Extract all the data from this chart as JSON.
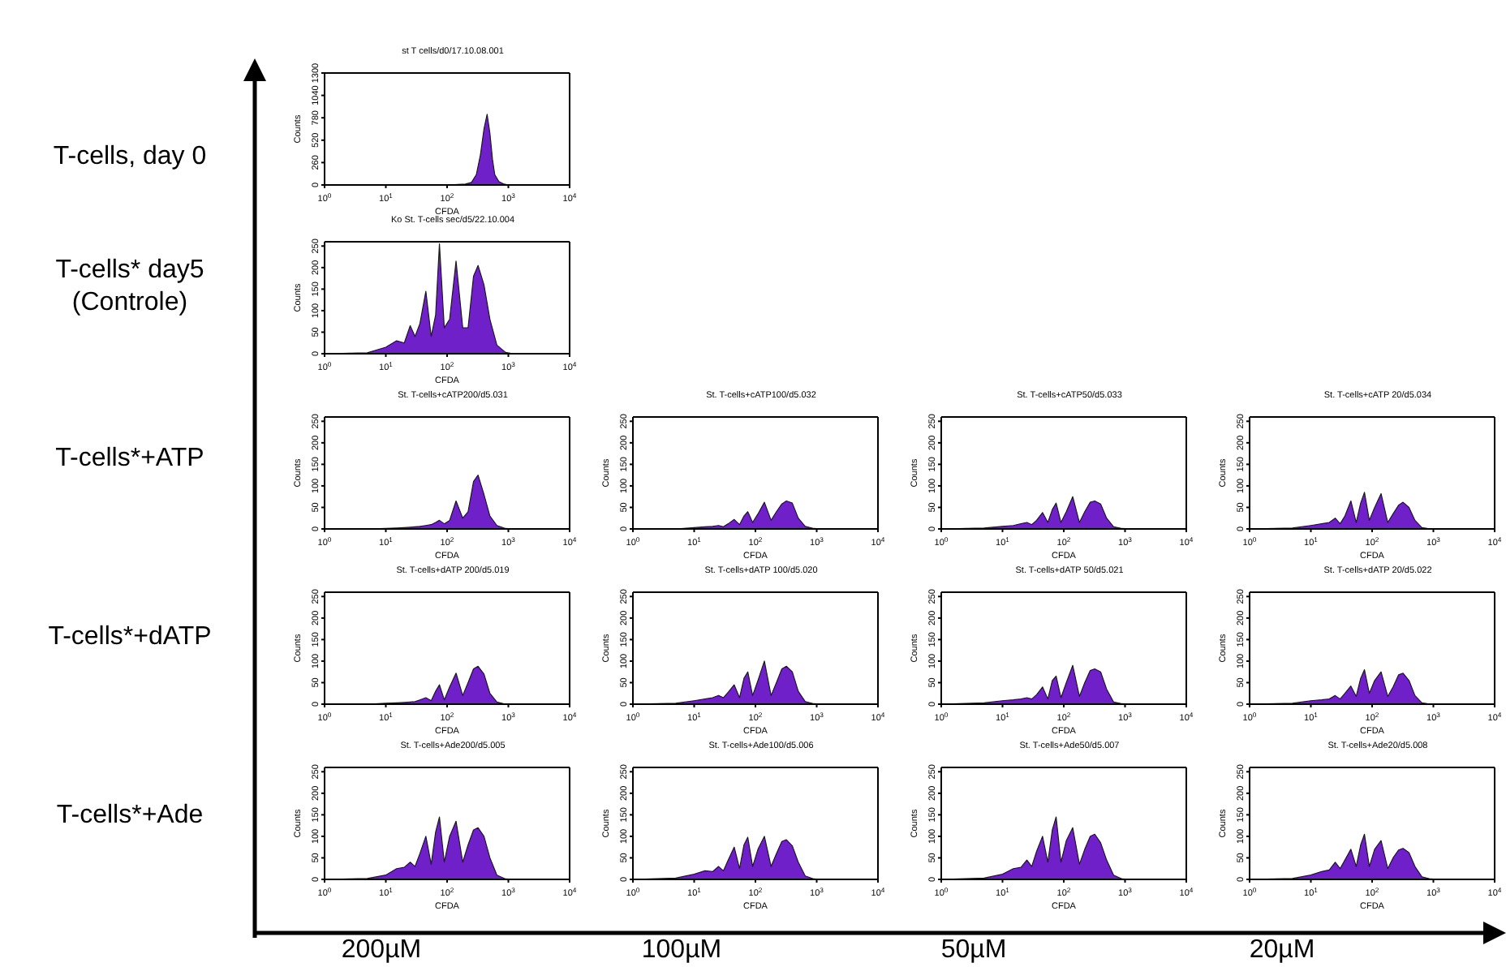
{
  "chart_data": [
    {
      "type": "area",
      "title": "st T cells/d0/17.10.08.001",
      "xlabel": "CFDA",
      "ylabel": "Counts",
      "log": "x",
      "color": "#7020c8",
      "xlim": [
        1,
        10000
      ],
      "xticks": [
        {
          "value": 1,
          "label": "10$^{0}$"
        },
        {
          "value": 10,
          "label": "10$^{1}$"
        },
        {
          "value": 100,
          "label": "10$^{2}$"
        },
        {
          "value": 1000,
          "label": "10$^{3}$"
        },
        {
          "value": 10000,
          "label": "10$^{4}$"
        }
      ],
      "ylim": [
        0,
        1300
      ],
      "yticks": [
        0,
        260,
        520,
        780,
        1040,
        1300
      ],
      "x": [
        1,
        100,
        200,
        250,
        300,
        350,
        400,
        450,
        500,
        550,
        600,
        700,
        850,
        1000,
        10000
      ],
      "values": [
        0,
        0,
        10,
        30,
        120,
        350,
        650,
        820,
        600,
        300,
        120,
        40,
        10,
        0,
        0
      ]
    },
    {
      "type": "area",
      "title": "Ko St. T-cells sec/d5/22.10.004",
      "xlabel": "CFDA",
      "ylabel": "Counts",
      "log": "x",
      "color": "#7020c8",
      "xlim": [
        1,
        10000
      ],
      "xticks": [
        {
          "value": 1,
          "label": "10$^{0}$"
        },
        {
          "value": 10,
          "label": "10$^{1}$"
        },
        {
          "value": 100,
          "label": "10$^{2}$"
        },
        {
          "value": 1000,
          "label": "10$^{3}$"
        },
        {
          "value": 10000,
          "label": "10$^{4}$"
        }
      ],
      "ylim": [
        0,
        260
      ],
      "yticks": [
        0,
        50,
        100,
        150,
        200,
        250
      ],
      "x": [
        1,
        5,
        10,
        15,
        20,
        25,
        30,
        36,
        45,
        55,
        65,
        75,
        90,
        110,
        140,
        180,
        220,
        270,
        320,
        400,
        500,
        650,
        900,
        1200,
        10000
      ],
      "values": [
        0,
        2,
        15,
        30,
        25,
        65,
        40,
        70,
        145,
        40,
        90,
        255,
        60,
        80,
        215,
        60,
        60,
        180,
        205,
        160,
        80,
        20,
        3,
        0,
        0
      ]
    },
    {
      "type": "area",
      "title": "St. T-cells+cATP200/d5.031",
      "xlabel": "CFDA",
      "ylabel": "Counts",
      "log": "x",
      "color": "#7020c8",
      "xlim": [
        1,
        10000
      ],
      "xticks": [
        {
          "value": 1,
          "label": "10$^{0}$"
        },
        {
          "value": 10,
          "label": "10$^{1}$"
        },
        {
          "value": 100,
          "label": "10$^{2}$"
        },
        {
          "value": 1000,
          "label": "10$^{3}$"
        },
        {
          "value": 10000,
          "label": "10$^{4}$"
        }
      ],
      "ylim": [
        0,
        260
      ],
      "yticks": [
        0,
        50,
        100,
        150,
        200,
        250
      ],
      "x": [
        1,
        5,
        10,
        15,
        20,
        25,
        30,
        36,
        45,
        55,
        65,
        75,
        90,
        110,
        140,
        180,
        220,
        270,
        320,
        400,
        500,
        650,
        900,
        1200,
        10000
      ],
      "values": [
        0,
        0,
        1,
        2,
        3,
        4,
        5,
        6,
        8,
        10,
        15,
        20,
        12,
        20,
        65,
        25,
        40,
        110,
        125,
        80,
        30,
        8,
        1,
        0,
        0
      ]
    },
    {
      "type": "area",
      "title": "St. T-cells+cATP100/d5.032",
      "xlabel": "CFDA",
      "ylabel": "Counts",
      "log": "x",
      "color": "#7020c8",
      "xlim": [
        1,
        10000
      ],
      "xticks": [
        {
          "value": 1,
          "label": "10$^{0}$"
        },
        {
          "value": 10,
          "label": "10$^{1}$"
        },
        {
          "value": 100,
          "label": "10$^{2}$"
        },
        {
          "value": 1000,
          "label": "10$^{3}$"
        },
        {
          "value": 10000,
          "label": "10$^{4}$"
        }
      ],
      "ylim": [
        0,
        260
      ],
      "yticks": [
        0,
        50,
        100,
        150,
        200,
        250
      ],
      "x": [
        1,
        5,
        10,
        15,
        20,
        25,
        30,
        36,
        45,
        55,
        65,
        75,
        90,
        110,
        140,
        180,
        220,
        270,
        320,
        400,
        500,
        650,
        900,
        1200,
        10000
      ],
      "values": [
        0,
        0,
        3,
        5,
        6,
        8,
        5,
        12,
        22,
        10,
        30,
        40,
        15,
        35,
        62,
        20,
        40,
        58,
        65,
        60,
        25,
        6,
        1,
        0,
        0
      ]
    },
    {
      "type": "area",
      "title": "St. T-cells+cATP50/d5.033",
      "xlabel": "CFDA",
      "ylabel": "Counts",
      "log": "x",
      "color": "#7020c8",
      "xlim": [
        1,
        10000
      ],
      "xticks": [
        {
          "value": 1,
          "label": "10$^{0}$"
        },
        {
          "value": 10,
          "label": "10$^{1}$"
        },
        {
          "value": 100,
          "label": "10$^{2}$"
        },
        {
          "value": 1000,
          "label": "10$^{3}$"
        },
        {
          "value": 10000,
          "label": "10$^{4}$"
        }
      ],
      "ylim": [
        0,
        260
      ],
      "yticks": [
        0,
        50,
        100,
        150,
        200,
        250
      ],
      "x": [
        1,
        5,
        10,
        15,
        20,
        25,
        30,
        36,
        45,
        55,
        65,
        75,
        90,
        110,
        140,
        180,
        220,
        270,
        320,
        400,
        500,
        650,
        900,
        1200,
        10000
      ],
      "values": [
        0,
        2,
        6,
        8,
        12,
        15,
        10,
        20,
        38,
        15,
        45,
        60,
        15,
        40,
        75,
        15,
        40,
        62,
        65,
        58,
        25,
        5,
        1,
        0,
        0
      ]
    },
    {
      "type": "area",
      "title": "St. T-cells+cATP 20/d5.034",
      "xlabel": "CFDA",
      "ylabel": "Counts",
      "log": "x",
      "color": "#7020c8",
      "xlim": [
        1,
        10000
      ],
      "xticks": [
        {
          "value": 1,
          "label": "10$^{0}$"
        },
        {
          "value": 10,
          "label": "10$^{1}$"
        },
        {
          "value": 100,
          "label": "10$^{2}$"
        },
        {
          "value": 1000,
          "label": "10$^{3}$"
        },
        {
          "value": 10000,
          "label": "10$^{4}$"
        }
      ],
      "ylim": [
        0,
        260
      ],
      "yticks": [
        0,
        50,
        100,
        150,
        200,
        250
      ],
      "x": [
        1,
        5,
        10,
        15,
        20,
        25,
        30,
        36,
        45,
        55,
        65,
        75,
        90,
        110,
        140,
        180,
        220,
        270,
        320,
        400,
        500,
        650,
        900,
        1200,
        10000
      ],
      "values": [
        0,
        2,
        8,
        12,
        15,
        25,
        12,
        30,
        65,
        15,
        60,
        85,
        20,
        50,
        82,
        15,
        35,
        55,
        62,
        50,
        20,
        3,
        0,
        0,
        0
      ]
    },
    {
      "type": "area",
      "title": "St. T-cells+dATP 200/d5.019",
      "xlabel": "CFDA",
      "ylabel": "Counts",
      "log": "x",
      "color": "#7020c8",
      "xlim": [
        1,
        10000
      ],
      "xticks": [
        {
          "value": 1,
          "label": "10$^{0}$"
        },
        {
          "value": 10,
          "label": "10$^{1}$"
        },
        {
          "value": 100,
          "label": "10$^{2}$"
        },
        {
          "value": 1000,
          "label": "10$^{3}$"
        },
        {
          "value": 10000,
          "label": "10$^{4}$"
        }
      ],
      "ylim": [
        0,
        260
      ],
      "yticks": [
        0,
        50,
        100,
        150,
        200,
        250
      ],
      "x": [
        1,
        5,
        10,
        15,
        20,
        25,
        30,
        36,
        45,
        55,
        65,
        75,
        90,
        110,
        140,
        180,
        220,
        270,
        320,
        400,
        500,
        650,
        900,
        1200,
        10000
      ],
      "values": [
        0,
        0,
        2,
        3,
        4,
        5,
        6,
        10,
        15,
        8,
        30,
        45,
        10,
        40,
        72,
        20,
        50,
        82,
        88,
        70,
        25,
        5,
        0,
        0,
        0
      ]
    },
    {
      "type": "area",
      "title": "St. T-cells+dATP 100/d5.020",
      "xlabel": "CFDA",
      "ylabel": "Counts",
      "log": "x",
      "color": "#7020c8",
      "xlim": [
        1,
        10000
      ],
      "xticks": [
        {
          "value": 1,
          "label": "10$^{0}$"
        },
        {
          "value": 10,
          "label": "10$^{1}$"
        },
        {
          "value": 100,
          "label": "10$^{2}$"
        },
        {
          "value": 1000,
          "label": "10$^{3}$"
        },
        {
          "value": 10000,
          "label": "10$^{4}$"
        }
      ],
      "ylim": [
        0,
        260
      ],
      "yticks": [
        0,
        50,
        100,
        150,
        200,
        250
      ],
      "x": [
        1,
        5,
        10,
        15,
        20,
        25,
        30,
        36,
        45,
        55,
        65,
        75,
        90,
        110,
        140,
        180,
        220,
        270,
        320,
        400,
        500,
        650,
        900,
        1200,
        10000
      ],
      "values": [
        0,
        2,
        8,
        12,
        15,
        20,
        15,
        28,
        45,
        15,
        60,
        75,
        20,
        55,
        100,
        20,
        50,
        82,
        88,
        75,
        30,
        6,
        1,
        0,
        0
      ]
    },
    {
      "type": "area",
      "title": "St. T-cells+dATP 50/d5.021",
      "xlabel": "CFDA",
      "ylabel": "Counts",
      "log": "x",
      "color": "#7020c8",
      "xlim": [
        1,
        10000
      ],
      "xticks": [
        {
          "value": 1,
          "label": "10$^{0}$"
        },
        {
          "value": 10,
          "label": "10$^{1}$"
        },
        {
          "value": 100,
          "label": "10$^{2}$"
        },
        {
          "value": 1000,
          "label": "10$^{3}$"
        },
        {
          "value": 10000,
          "label": "10$^{4}$"
        }
      ],
      "ylim": [
        0,
        260
      ],
      "yticks": [
        0,
        50,
        100,
        150,
        200,
        250
      ],
      "x": [
        1,
        5,
        10,
        15,
        20,
        25,
        30,
        36,
        45,
        55,
        65,
        75,
        90,
        110,
        140,
        180,
        220,
        270,
        320,
        400,
        500,
        650,
        900,
        1200,
        10000
      ],
      "values": [
        0,
        3,
        8,
        10,
        12,
        15,
        12,
        22,
        40,
        12,
        55,
        65,
        15,
        50,
        90,
        18,
        50,
        78,
        82,
        75,
        35,
        5,
        1,
        0,
        0
      ]
    },
    {
      "type": "area",
      "title": "St. T-cells+dATP 20/d5.022",
      "xlabel": "CFDA",
      "ylabel": "Counts",
      "log": "x",
      "color": "#7020c8",
      "xlim": [
        1,
        10000
      ],
      "xticks": [
        {
          "value": 1,
          "label": "10$^{0}$"
        },
        {
          "value": 10,
          "label": "10$^{1}$"
        },
        {
          "value": 100,
          "label": "10$^{2}$"
        },
        {
          "value": 1000,
          "label": "10$^{3}$"
        },
        {
          "value": 10000,
          "label": "10$^{4}$"
        }
      ],
      "ylim": [
        0,
        260
      ],
      "yticks": [
        0,
        50,
        100,
        150,
        200,
        250
      ],
      "x": [
        1,
        5,
        10,
        15,
        20,
        25,
        30,
        36,
        45,
        55,
        65,
        75,
        90,
        110,
        140,
        180,
        220,
        270,
        320,
        400,
        500,
        650,
        900,
        1200,
        10000
      ],
      "values": [
        0,
        2,
        8,
        10,
        12,
        20,
        12,
        25,
        42,
        18,
        60,
        80,
        25,
        55,
        75,
        18,
        40,
        68,
        72,
        55,
        20,
        3,
        0,
        0,
        0
      ]
    },
    {
      "type": "area",
      "title": "St. T-cells+Ade200/d5.005",
      "xlabel": "CFDA",
      "ylabel": "Counts",
      "log": "x",
      "color": "#7020c8",
      "xlim": [
        1,
        10000
      ],
      "xticks": [
        {
          "value": 1,
          "label": "10$^{0}$"
        },
        {
          "value": 10,
          "label": "10$^{1}$"
        },
        {
          "value": 100,
          "label": "10$^{2}$"
        },
        {
          "value": 1000,
          "label": "10$^{3}$"
        },
        {
          "value": 10000,
          "label": "10$^{4}$"
        }
      ],
      "ylim": [
        0,
        260
      ],
      "yticks": [
        0,
        50,
        100,
        150,
        200,
        250
      ],
      "x": [
        1,
        5,
        10,
        15,
        20,
        25,
        30,
        36,
        45,
        55,
        65,
        75,
        90,
        110,
        140,
        180,
        220,
        270,
        320,
        400,
        500,
        650,
        900,
        1200,
        10000
      ],
      "values": [
        0,
        2,
        10,
        25,
        28,
        40,
        30,
        60,
        100,
        35,
        110,
        145,
        40,
        100,
        135,
        40,
        80,
        115,
        120,
        100,
        50,
        10,
        1,
        0,
        0
      ]
    },
    {
      "type": "area",
      "title": "St. T-cells+Ade100/d5.006",
      "xlabel": "CFDA",
      "ylabel": "Counts",
      "log": "x",
      "color": "#7020c8",
      "xlim": [
        1,
        10000
      ],
      "xticks": [
        {
          "value": 1,
          "label": "10$^{0}$"
        },
        {
          "value": 10,
          "label": "10$^{1}$"
        },
        {
          "value": 100,
          "label": "10$^{2}$"
        },
        {
          "value": 1000,
          "label": "10$^{3}$"
        },
        {
          "value": 10000,
          "label": "10$^{4}$"
        }
      ],
      "ylim": [
        0,
        260
      ],
      "yticks": [
        0,
        50,
        100,
        150,
        200,
        250
      ],
      "x": [
        1,
        5,
        10,
        15,
        20,
        25,
        30,
        36,
        45,
        55,
        65,
        75,
        90,
        110,
        140,
        180,
        220,
        270,
        320,
        400,
        500,
        650,
        900,
        1200,
        10000
      ],
      "values": [
        0,
        3,
        12,
        20,
        18,
        30,
        20,
        45,
        75,
        25,
        80,
        98,
        30,
        70,
        100,
        30,
        60,
        88,
        92,
        78,
        40,
        8,
        1,
        0,
        0
      ]
    },
    {
      "type": "area",
      "title": "St. T-cells+Ade50/d5.007",
      "xlabel": "CFDA",
      "ylabel": "Counts",
      "log": "x",
      "color": "#7020c8",
      "xlim": [
        1,
        10000
      ],
      "xticks": [
        {
          "value": 1,
          "label": "10$^{0}$"
        },
        {
          "value": 10,
          "label": "10$^{1}$"
        },
        {
          "value": 100,
          "label": "10$^{2}$"
        },
        {
          "value": 1000,
          "label": "10$^{3}$"
        },
        {
          "value": 10000,
          "label": "10$^{4}$"
        }
      ],
      "ylim": [
        0,
        260
      ],
      "yticks": [
        0,
        50,
        100,
        150,
        200,
        250
      ],
      "x": [
        1,
        5,
        10,
        15,
        20,
        25,
        30,
        36,
        45,
        55,
        65,
        75,
        90,
        110,
        140,
        180,
        220,
        270,
        320,
        400,
        500,
        650,
        900,
        1200,
        10000
      ],
      "values": [
        0,
        3,
        12,
        25,
        28,
        45,
        30,
        65,
        100,
        40,
        115,
        145,
        40,
        90,
        120,
        35,
        70,
        100,
        105,
        85,
        45,
        10,
        1,
        0,
        0
      ]
    },
    {
      "type": "area",
      "title": "St. T-cells+Ade20/d5.008",
      "xlabel": "CFDA",
      "ylabel": "Counts",
      "log": "x",
      "color": "#7020c8",
      "xlim": [
        1,
        10000
      ],
      "xticks": [
        {
          "value": 1,
          "label": "10$^{0}$"
        },
        {
          "value": 10,
          "label": "10$^{1}$"
        },
        {
          "value": 100,
          "label": "10$^{2}$"
        },
        {
          "value": 1000,
          "label": "10$^{3}$"
        },
        {
          "value": 10000,
          "label": "10$^{4}$"
        }
      ],
      "ylim": [
        0,
        260
      ],
      "yticks": [
        0,
        50,
        100,
        150,
        200,
        250
      ],
      "x": [
        1,
        5,
        10,
        15,
        20,
        25,
        30,
        36,
        45,
        55,
        65,
        75,
        90,
        110,
        140,
        180,
        220,
        270,
        320,
        400,
        500,
        650,
        900,
        1200,
        10000
      ],
      "values": [
        0,
        2,
        10,
        18,
        22,
        40,
        25,
        45,
        70,
        30,
        80,
        105,
        30,
        70,
        90,
        25,
        50,
        68,
        72,
        62,
        30,
        6,
        1,
        0,
        0
      ]
    },
    {
      "type": "other",
      "y_categories": [
        "T-cells, day 0",
        "T-cells* day5\n(Controle)",
        "T-cells*+ATP",
        "T-cells*+dATP",
        "T-cells*+Ade"
      ],
      "categories": [
        "200µM",
        "100µM",
        "50µM",
        "20µM"
      ]
    }
  ]
}
